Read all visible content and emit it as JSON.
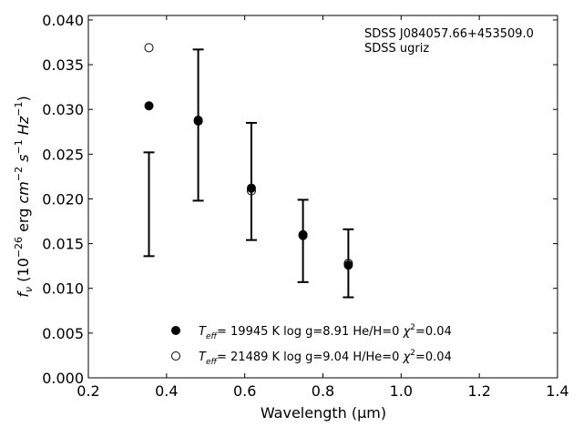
{
  "chart_data": {
    "type": "scatter",
    "xlabel": "Wavelength (μm)",
    "ylabel_parts": {
      "f": "f",
      "nu": "ν",
      "open": " (10",
      "exp1": "−26",
      "erg": " erg ",
      "cm": "cm",
      "exp2": "−2",
      "s": " s",
      "exp3": "−1",
      "hz": " Hz",
      "exp4": "−1",
      "close": ")"
    },
    "xlim": [
      0.2,
      1.4
    ],
    "ylim": [
      0.0,
      0.0405
    ],
    "xticks": [
      "0.2",
      "0.4",
      "0.6",
      "0.8",
      "1.0",
      "1.2",
      "1.4"
    ],
    "yticks": [
      "0.000",
      "0.005",
      "0.010",
      "0.015",
      "0.020",
      "0.025",
      "0.030",
      "0.035",
      "0.040"
    ],
    "annotations": [
      "SDSS J084057.66+453509.0",
      "SDSS ugriz"
    ],
    "observed": [
      {
        "x": 0.355,
        "y_low": 0.0136,
        "y_high": 0.0252
      },
      {
        "x": 0.481,
        "y_low": 0.0198,
        "y_high": 0.0367
      },
      {
        "x": 0.617,
        "y_low": 0.0154,
        "y_high": 0.0285
      },
      {
        "x": 0.749,
        "y_low": 0.0107,
        "y_high": 0.0199
      },
      {
        "x": 0.865,
        "y_low": 0.009,
        "y_high": 0.0166
      }
    ],
    "series": [
      {
        "marker": "filled",
        "x": [
          0.355,
          0.481,
          0.617,
          0.749,
          0.865
        ],
        "y": [
          0.0304,
          0.0287,
          0.0212,
          0.0159,
          0.0126
        ],
        "label": {
          "T": "T",
          "sub": "eff",
          "text": "= 19945 K  log g=8.91  He/H=0  ",
          "chi": "χ",
          "sup": "2",
          "chi_val": "=0.04"
        }
      },
      {
        "marker": "open",
        "x": [
          0.355,
          0.481,
          0.617,
          0.749,
          0.865
        ],
        "y": [
          0.0369,
          0.0288,
          0.0209,
          0.016,
          0.0128
        ],
        "label": {
          "T": "T",
          "sub": "eff",
          "text": "= 21489 K  log g=9.04  H/He=0  ",
          "chi": "χ",
          "sup": "2",
          "chi_val": "=0.04"
        }
      }
    ],
    "legend_position": "lower-center",
    "grid": false
  }
}
